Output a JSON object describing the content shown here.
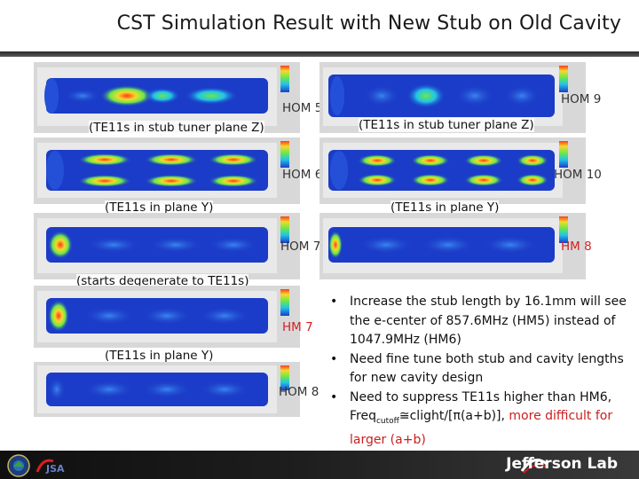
{
  "title": "CST Simulation Result with New Stub on Old Cavity",
  "panels": [
    {
      "id": "hom5",
      "label": "HOM 5",
      "caption": "(TE11s in stub tuner plane Z)"
    },
    {
      "id": "hom9",
      "label": "HOM 9",
      "caption": "(TE11s in stub tuner plane Z)"
    },
    {
      "id": "hom6",
      "label": "HOM 6",
      "caption": "(TE11s in plane Y)"
    },
    {
      "id": "hom10",
      "label": "HOM 10",
      "caption": "(TE11s in plane Y)"
    },
    {
      "id": "hom7",
      "label": "HOM 7",
      "caption": "(starts degenerate to TE11s)"
    },
    {
      "id": "hm8",
      "label": "HM 8",
      "caption": ""
    },
    {
      "id": "hm7",
      "label": "HM 7",
      "caption": "(TE11s in plane Y)"
    },
    {
      "id": "hom8",
      "label": "HOM 8",
      "caption": ""
    }
  ],
  "bullets": [
    {
      "text": "Increase the stub length by 16.1mm will see the e-center of 857.6MHz (HM5) instead of 1047.9MHz (HM6)"
    },
    {
      "text": "Need fine tune both stub and cavity lengths for new cavity design"
    },
    {
      "text_pre": "Need to suppress TE11s higher than HM6, Freq",
      "text_sub": "cutoff",
      "text_mid": "≅clight/[π(a+b)], ",
      "text_red": "more difficult for larger (a+b)"
    }
  ],
  "footer": {
    "lab": "Jefferson Lab",
    "doe_seal": "U.S. DEPARTMENT OF ENERGY",
    "jsa": "JSA"
  },
  "colors": {
    "field_low": "#1b3cc8",
    "field_high": "#ff3a1a",
    "accent_red": "#c8201e"
  }
}
